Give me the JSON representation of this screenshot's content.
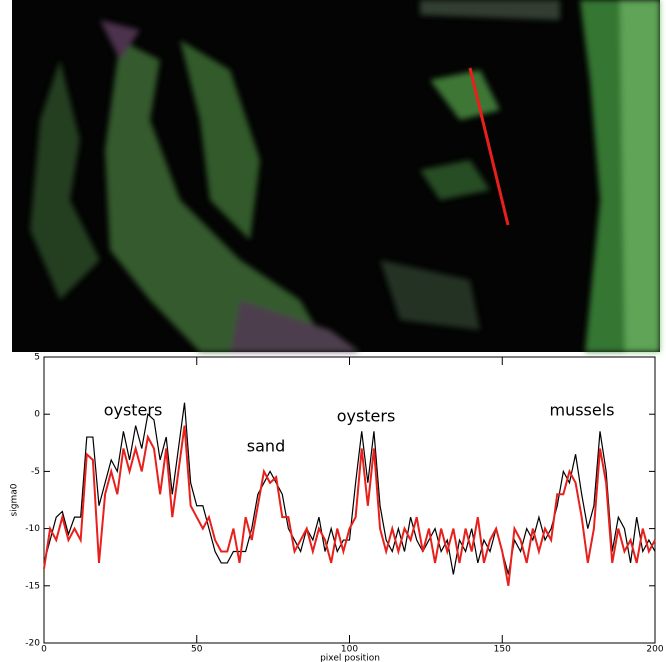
{
  "chart_data": {
    "type": "line",
    "annotations": [
      "oysters",
      "sand",
      "oysters",
      "mussels"
    ],
    "x_label": "pixel position",
    "y_label": "sigma0",
    "x": [
      0,
      2,
      4,
      6,
      8,
      10,
      12,
      14,
      16,
      18,
      20,
      22,
      24,
      26,
      28,
      30,
      32,
      34,
      36,
      38,
      40,
      42,
      44,
      46,
      48,
      50,
      52,
      54,
      56,
      58,
      60,
      62,
      64,
      66,
      68,
      70,
      72,
      74,
      76,
      78,
      80,
      82,
      84,
      86,
      88,
      90,
      92,
      94,
      96,
      98,
      100,
      102,
      104,
      106,
      108,
      110,
      112,
      114,
      116,
      118,
      120,
      122,
      124,
      126,
      128,
      130,
      132,
      134,
      136,
      138,
      140,
      142,
      144,
      146,
      148,
      150,
      152,
      154,
      156,
      158,
      160,
      162,
      164,
      166,
      168,
      170,
      172,
      174,
      176,
      178,
      180,
      182,
      184,
      186,
      188,
      190,
      192,
      194,
      196,
      198,
      200
    ],
    "series": [
      {
        "color": "#000000",
        "values": [
          -13,
          -11,
          -9,
          -8.5,
          -10.5,
          -9,
          -9,
          -2,
          -2,
          -8,
          -6,
          -4,
          -5,
          -1.5,
          -4,
          -1,
          -3,
          0,
          -0.5,
          -4,
          -2,
          -7,
          -3,
          1,
          -6,
          -8,
          -8,
          -10,
          -12,
          -13,
          -13,
          -12,
          -12,
          -12,
          -10,
          -7,
          -6,
          -5,
          -6,
          -7,
          -10,
          -11,
          -12,
          -10,
          -11,
          -9,
          -12,
          -10,
          -12,
          -11,
          -11,
          -6,
          -1.5,
          -6,
          -1.5,
          -8,
          -11,
          -12,
          -10,
          -12,
          -9,
          -11,
          -12,
          -11,
          -10,
          -12,
          -11,
          -14,
          -11,
          -12,
          -10,
          -13,
          -11,
          -12,
          -10,
          -12,
          -14,
          -11,
          -12,
          -10,
          -11,
          -9,
          -11,
          -10,
          -8,
          -5,
          -6,
          -3.5,
          -7,
          -10,
          -8,
          -1.5,
          -5,
          -12,
          -9,
          -10,
          -13,
          -9,
          -12,
          -11,
          -12
        ]
      },
      {
        "color": "#e8201c",
        "values": [
          -13.5,
          -10,
          -11,
          -9,
          -11,
          -10,
          -11,
          -3.5,
          -4,
          -13,
          -7,
          -5,
          -7,
          -3,
          -5,
          -3,
          -5,
          -2,
          -3,
          -7,
          -3,
          -9,
          -5,
          -1,
          -8,
          -9,
          -10,
          -9,
          -11,
          -12,
          -12,
          -10,
          -13,
          -9,
          -11,
          -8,
          -5,
          -6,
          -5.5,
          -9,
          -9,
          -12,
          -11,
          -10,
          -12,
          -10,
          -11,
          -13,
          -10,
          -12,
          -10,
          -9,
          -3,
          -8,
          -3,
          -10,
          -12,
          -10,
          -12,
          -10,
          -11,
          -9,
          -12,
          -10,
          -13,
          -10,
          -12,
          -10,
          -13,
          -10,
          -12,
          -9,
          -13,
          -11,
          -10,
          -12,
          -15,
          -10,
          -11,
          -13,
          -10,
          -12,
          -10,
          -11,
          -7,
          -7,
          -5,
          -6,
          -9,
          -13,
          -10,
          -3,
          -6,
          -13,
          -10,
          -12,
          -11,
          -13,
          -10,
          -12,
          -11
        ]
      }
    ],
    "xlim": [
      0,
      200
    ],
    "xticks": [
      0,
      50,
      100,
      150,
      200
    ],
    "ylim": [
      -20,
      5
    ],
    "yticks": [
      -20,
      -15,
      -10,
      -5,
      0,
      5
    ]
  }
}
